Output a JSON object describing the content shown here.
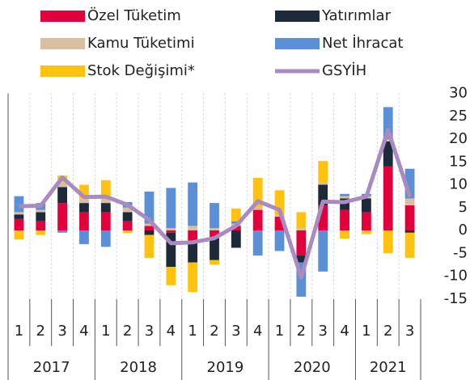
{
  "chart_data": {
    "type": "bar",
    "stacked": true,
    "categories": [
      "1",
      "2",
      "3",
      "4",
      "1",
      "2",
      "3",
      "4",
      "1",
      "2",
      "3",
      "4",
      "1",
      "2",
      "3",
      "4",
      "1",
      "2",
      "3"
    ],
    "years": [
      "2017",
      "2018",
      "2019",
      "2020",
      "2021"
    ],
    "series": [
      {
        "name": "Özel Tüketim",
        "color": "#e2003c",
        "values": [
          2.5,
          2,
          6,
          4,
          4,
          2,
          1,
          -0.5,
          -2.5,
          -1.5,
          1,
          4.5,
          3,
          -5.5,
          5.5,
          4.5,
          4,
          14,
          5.5
        ]
      },
      {
        "name": "Yatırımlar",
        "color": "#1c2a3a",
        "values": [
          1,
          2,
          3.5,
          2,
          2,
          2,
          -1,
          -7.5,
          -4.5,
          -5,
          -3.8,
          0,
          0,
          -1.5,
          4.5,
          2.5,
          3,
          5.5,
          -0.5
        ]
      },
      {
        "name": "Kamu Tüketimi",
        "color": "#d8bf9f",
        "values": [
          0.5,
          0.5,
          1,
          1,
          1,
          1,
          0.5,
          0.5,
          1,
          0.5,
          0.5,
          0.5,
          0.5,
          0.5,
          0.5,
          0.5,
          0.5,
          0.5,
          1.5
        ]
      },
      {
        "name": "Net İhracat",
        "color": "#5b8fd6",
        "values": [
          3.5,
          1.5,
          -0.5,
          -3,
          -3.6,
          1.2,
          7,
          8.8,
          9.5,
          5.5,
          0.5,
          -5.5,
          -4.5,
          -7.5,
          -9,
          0.5,
          0.5,
          7,
          6.5
        ]
      },
      {
        "name": "Stok Değişimi*",
        "color": "#ffc20e",
        "values": [
          -2,
          -1,
          1.5,
          3,
          4,
          -0.6,
          -5,
          -4,
          -6.5,
          -1,
          2.8,
          6.5,
          5.3,
          3.5,
          4.7,
          -1.8,
          -0.8,
          -5,
          -5.5
        ]
      },
      {
        "name": "GSYİH",
        "color": "#a98bbf",
        "type": "line",
        "values": [
          5.3,
          5.4,
          11.6,
          7.3,
          7.4,
          5.6,
          2.3,
          -2.8,
          -2.6,
          -1.7,
          1,
          6.4,
          4.5,
          -10.3,
          6.3,
          6.2,
          7.4,
          22,
          7.4
        ]
      }
    ],
    "ylim": [
      -15,
      30
    ],
    "yticks": [
      30,
      25,
      20,
      15,
      10,
      5,
      0,
      -5,
      -10,
      -15
    ],
    "y_axis_side": "right",
    "grid": true
  }
}
